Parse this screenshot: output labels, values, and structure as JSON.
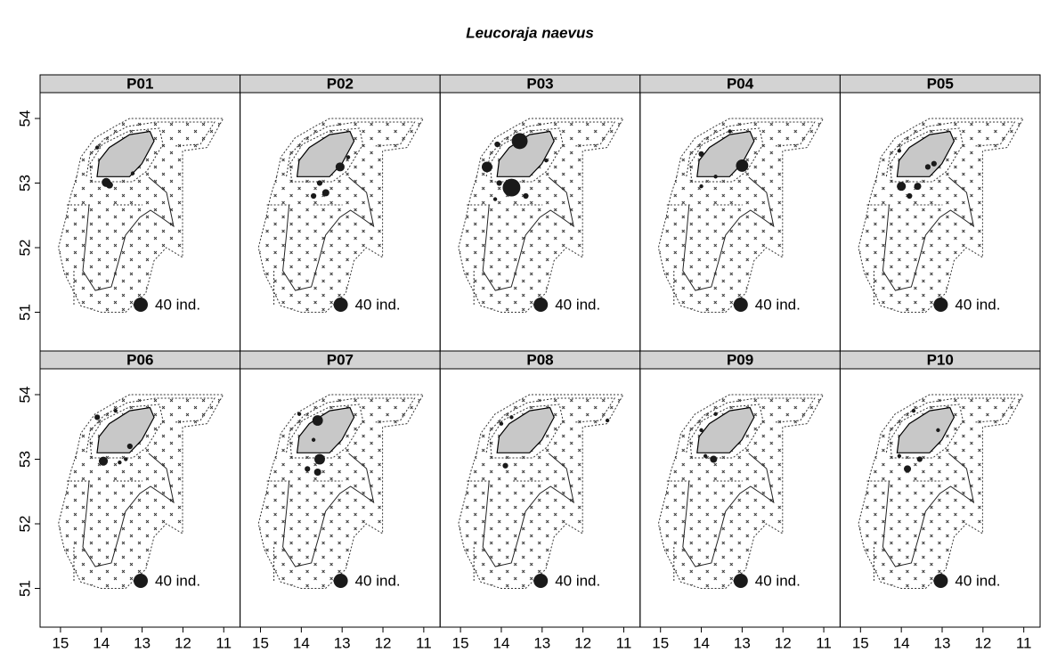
{
  "chart_data": {
    "type": "bubble",
    "title": "Leucoraja naevus",
    "xlim": [
      15.5,
      10.6
    ],
    "ylim": [
      50.4,
      54.4
    ],
    "xticks": [
      15,
      14,
      13,
      12,
      11
    ],
    "yticks": [
      51,
      52,
      53,
      54
    ],
    "color": "#1a1a1a",
    "legend": {
      "label": "40 ind.",
      "size": 40
    },
    "panels": [
      {
        "name": "P01",
        "x": [
          13.88,
          13.8,
          13.23,
          14.1
        ],
        "y": [
          53.01,
          52.97,
          53.15,
          53.55
        ],
        "sizes": [
          16,
          10,
          3,
          3
        ]
      },
      {
        "name": "P02",
        "x": [
          13.05,
          13.4,
          13.55,
          13.7,
          12.85
        ],
        "y": [
          53.25,
          52.85,
          53.0,
          52.8,
          53.4
        ],
        "sizes": [
          16,
          10,
          6,
          6,
          3
        ]
      },
      {
        "name": "P03",
        "x": [
          13.55,
          13.75,
          14.35,
          14.1,
          14.05,
          13.4,
          14.15,
          12.9
        ],
        "y": [
          53.65,
          52.93,
          53.25,
          53.6,
          53.0,
          52.8,
          52.75,
          53.35
        ],
        "sizes": [
          50,
          62,
          22,
          6,
          6,
          6,
          3,
          3
        ]
      },
      {
        "name": "P04",
        "x": [
          13.0,
          13.65,
          14.0,
          14.0,
          13.3
        ],
        "y": [
          53.27,
          53.1,
          53.45,
          52.95,
          53.8
        ],
        "sizes": [
          30,
          3,
          6,
          3,
          3
        ]
      },
      {
        "name": "P05",
        "x": [
          14.0,
          13.6,
          13.8,
          13.35,
          13.2,
          14.05
        ],
        "y": [
          52.95,
          52.95,
          52.8,
          53.25,
          53.3,
          53.5
        ],
        "sizes": [
          16,
          10,
          6,
          6,
          6,
          3
        ]
      },
      {
        "name": "P06",
        "x": [
          13.95,
          14.1,
          13.65,
          13.3,
          13.55,
          13.4
        ],
        "y": [
          52.97,
          53.65,
          53.75,
          53.2,
          52.95,
          53.0
        ],
        "sizes": [
          16,
          6,
          3,
          6,
          3,
          3
        ]
      },
      {
        "name": "P07",
        "x": [
          13.55,
          13.6,
          13.6,
          13.85,
          13.7,
          14.05
        ],
        "y": [
          53.0,
          53.6,
          52.8,
          52.85,
          53.3,
          53.7
        ],
        "sizes": [
          22,
          22,
          10,
          6,
          3,
          3
        ]
      },
      {
        "name": "P08",
        "x": [
          14.0,
          13.75,
          13.9,
          11.4
        ],
        "y": [
          53.55,
          53.65,
          52.9,
          53.6
        ],
        "sizes": [
          3,
          3,
          6,
          3
        ]
      },
      {
        "name": "P09",
        "x": [
          13.7,
          13.9,
          14.0,
          13.65
        ],
        "y": [
          53.0,
          53.05,
          53.45,
          53.7
        ],
        "sizes": [
          10,
          3,
          3,
          3
        ]
      },
      {
        "name": "P10",
        "x": [
          13.85,
          13.55,
          14.05,
          13.7,
          13.1
        ],
        "y": [
          52.85,
          53.0,
          53.05,
          53.75,
          53.45
        ],
        "sizes": [
          10,
          6,
          3,
          3,
          3
        ]
      }
    ]
  }
}
